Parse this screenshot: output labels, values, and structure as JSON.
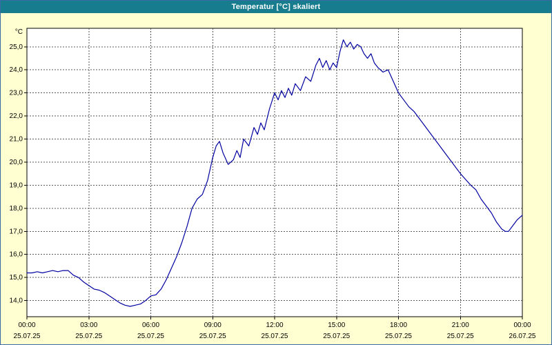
{
  "window": {
    "title": "Temperatur [°C] skaliert"
  },
  "colors": {
    "titlebar_bg": "#177c8e",
    "titlebar_text": "#ffffff",
    "window_bg": "#ffffd2",
    "window_border": "#3a6aa5",
    "plot_bg": "#ffffff",
    "plot_border": "#000000",
    "grid": "#555555",
    "line": "#0000a0",
    "tick_text": "#000000"
  },
  "chart_data": {
    "type": "line",
    "title": "Temperatur [°C] skaliert",
    "ylabel": "°C",
    "series_name": "Temperatur",
    "xlim": [
      0,
      24
    ],
    "ylim": [
      13.3,
      25.8
    ],
    "grid": true,
    "legend": false,
    "x_ticks": [
      {
        "hour": 0,
        "time": "00:00",
        "date": "25.07.25"
      },
      {
        "hour": 3,
        "time": "03:00",
        "date": "25.07.25"
      },
      {
        "hour": 6,
        "time": "06:00",
        "date": "25.07.25"
      },
      {
        "hour": 9,
        "time": "09:00",
        "date": "25.07.25"
      },
      {
        "hour": 12,
        "time": "12:00",
        "date": "25.07.25"
      },
      {
        "hour": 15,
        "time": "15:00",
        "date": "25.07.25"
      },
      {
        "hour": 18,
        "time": "18:00",
        "date": "25.07.25"
      },
      {
        "hour": 21,
        "time": "21:00",
        "date": "25.07.25"
      },
      {
        "hour": 24,
        "time": "00:00",
        "date": "26.07.25"
      }
    ],
    "y_ticks": [
      {
        "value": 14,
        "label": "14,0"
      },
      {
        "value": 15,
        "label": "15,0"
      },
      {
        "value": 16,
        "label": "16,0"
      },
      {
        "value": 17,
        "label": "17,0"
      },
      {
        "value": 18,
        "label": "18,0"
      },
      {
        "value": 19,
        "label": "19,0"
      },
      {
        "value": 20,
        "label": "20,0"
      },
      {
        "value": 21,
        "label": "21,0"
      },
      {
        "value": 22,
        "label": "22,0"
      },
      {
        "value": 23,
        "label": "23,0"
      },
      {
        "value": 24,
        "label": "24,0"
      },
      {
        "value": 25,
        "label": "25,0"
      }
    ],
    "points": [
      [
        0.0,
        15.2
      ],
      [
        0.25,
        15.2
      ],
      [
        0.5,
        15.25
      ],
      [
        0.75,
        15.2
      ],
      [
        1.0,
        15.25
      ],
      [
        1.25,
        15.3
      ],
      [
        1.5,
        15.25
      ],
      [
        1.75,
        15.3
      ],
      [
        2.0,
        15.3
      ],
      [
        2.25,
        15.1
      ],
      [
        2.5,
        15.0
      ],
      [
        2.75,
        14.8
      ],
      [
        3.0,
        14.65
      ],
      [
        3.25,
        14.5
      ],
      [
        3.5,
        14.45
      ],
      [
        3.75,
        14.35
      ],
      [
        4.0,
        14.2
      ],
      [
        4.25,
        14.05
      ],
      [
        4.5,
        13.9
      ],
      [
        4.75,
        13.8
      ],
      [
        5.0,
        13.75
      ],
      [
        5.25,
        13.8
      ],
      [
        5.5,
        13.85
      ],
      [
        5.75,
        14.0
      ],
      [
        6.0,
        14.2
      ],
      [
        6.25,
        14.25
      ],
      [
        6.5,
        14.5
      ],
      [
        6.75,
        14.9
      ],
      [
        7.0,
        15.4
      ],
      [
        7.25,
        15.9
      ],
      [
        7.5,
        16.5
      ],
      [
        7.75,
        17.2
      ],
      [
        8.0,
        18.0
      ],
      [
        8.25,
        18.4
      ],
      [
        8.5,
        18.6
      ],
      [
        8.75,
        19.2
      ],
      [
        9.0,
        20.2
      ],
      [
        9.17,
        20.7
      ],
      [
        9.33,
        20.9
      ],
      [
        9.5,
        20.4
      ],
      [
        9.75,
        19.9
      ],
      [
        10.0,
        20.1
      ],
      [
        10.17,
        20.5
      ],
      [
        10.33,
        20.2
      ],
      [
        10.5,
        21.0
      ],
      [
        10.75,
        20.7
      ],
      [
        11.0,
        21.5
      ],
      [
        11.17,
        21.2
      ],
      [
        11.33,
        21.7
      ],
      [
        11.5,
        21.4
      ],
      [
        11.75,
        22.3
      ],
      [
        12.0,
        23.0
      ],
      [
        12.17,
        22.7
      ],
      [
        12.33,
        23.1
      ],
      [
        12.5,
        22.8
      ],
      [
        12.67,
        23.2
      ],
      [
        12.83,
        22.9
      ],
      [
        13.0,
        23.4
      ],
      [
        13.25,
        23.1
      ],
      [
        13.5,
        23.7
      ],
      [
        13.75,
        23.5
      ],
      [
        14.0,
        24.2
      ],
      [
        14.17,
        24.5
      ],
      [
        14.33,
        24.1
      ],
      [
        14.5,
        24.4
      ],
      [
        14.67,
        24.0
      ],
      [
        14.83,
        24.3
      ],
      [
        15.0,
        24.1
      ],
      [
        15.17,
        24.8
      ],
      [
        15.33,
        25.3
      ],
      [
        15.5,
        25.0
      ],
      [
        15.67,
        25.2
      ],
      [
        15.83,
        24.9
      ],
      [
        16.0,
        25.1
      ],
      [
        16.17,
        25.0
      ],
      [
        16.33,
        24.7
      ],
      [
        16.5,
        24.5
      ],
      [
        16.67,
        24.7
      ],
      [
        16.83,
        24.3
      ],
      [
        17.0,
        24.1
      ],
      [
        17.25,
        23.9
      ],
      [
        17.5,
        24.0
      ],
      [
        17.75,
        23.5
      ],
      [
        18.0,
        23.0
      ],
      [
        18.25,
        22.7
      ],
      [
        18.5,
        22.4
      ],
      [
        18.75,
        22.2
      ],
      [
        19.0,
        21.9
      ],
      [
        19.5,
        21.3
      ],
      [
        20.0,
        20.7
      ],
      [
        20.5,
        20.1
      ],
      [
        21.0,
        19.5
      ],
      [
        21.5,
        19.0
      ],
      [
        21.75,
        18.8
      ],
      [
        22.0,
        18.4
      ],
      [
        22.5,
        17.8
      ],
      [
        22.75,
        17.4
      ],
      [
        23.0,
        17.1
      ],
      [
        23.17,
        17.0
      ],
      [
        23.33,
        17.0
      ],
      [
        23.5,
        17.2
      ],
      [
        23.75,
        17.5
      ],
      [
        24.0,
        17.7
      ]
    ]
  }
}
